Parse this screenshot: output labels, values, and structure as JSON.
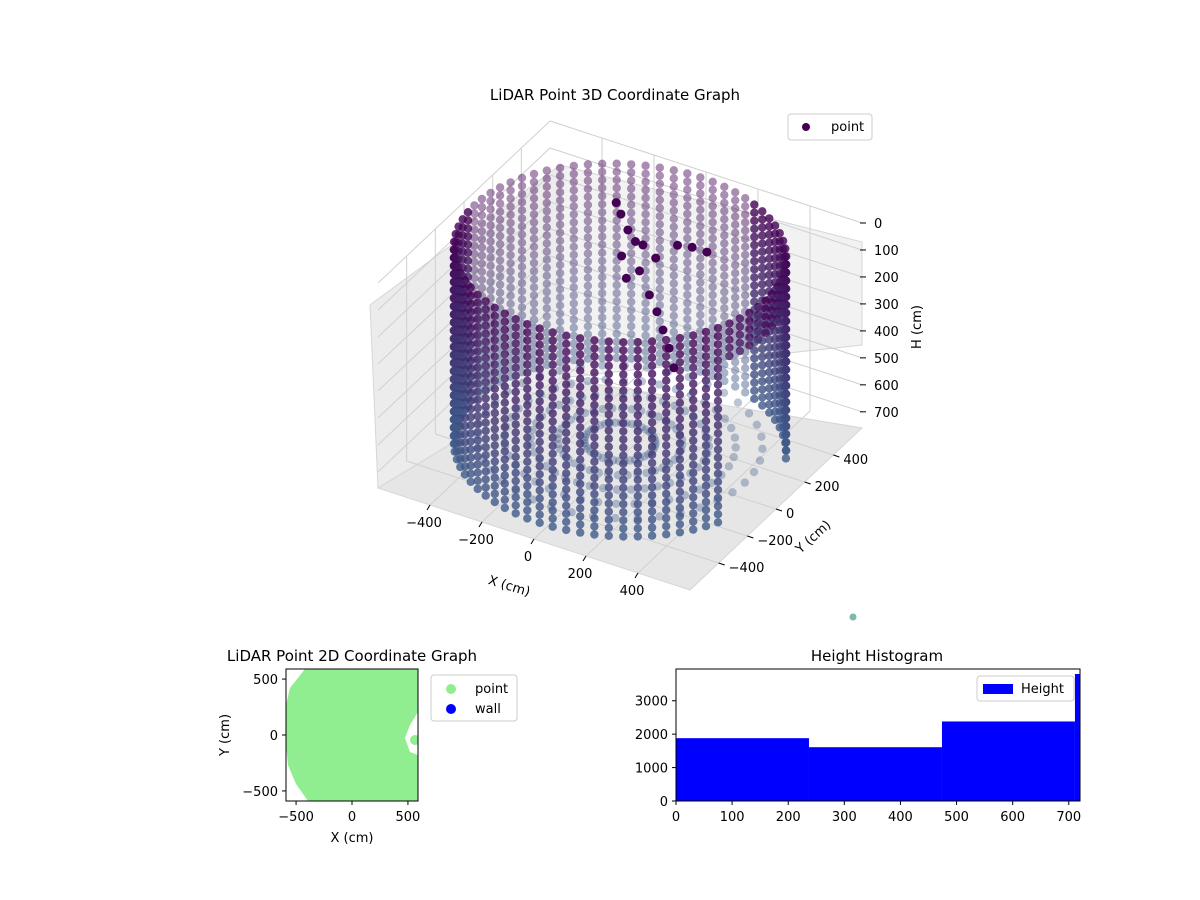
{
  "chart_data": [
    {
      "type": "scatter",
      "title": "LiDAR Point 3D Coordinate Graph",
      "xlabel": "X (cm)",
      "ylabel": "Y (cm)",
      "zlabel": "H (cm)",
      "xlim": [
        -600,
        600
      ],
      "ylim": [
        -600,
        600
      ],
      "zlim": [
        760,
        0
      ],
      "x_ticks": [
        "−400",
        "−200",
        "0",
        "200",
        "400"
      ],
      "y_ticks": [
        "−400",
        "−200",
        "0",
        "200",
        "400"
      ],
      "z_ticks": [
        "0",
        "100",
        "200",
        "300",
        "400",
        "500",
        "600",
        "700"
      ],
      "legend": {
        "entries": [
          "point"
        ],
        "placement": "top-right"
      },
      "series": [
        {
          "name": "point",
          "shape": "cylindrical wall of radius ~560 cm, heights 0–720 cm, colormap viridis by height"
        }
      ],
      "colors": {
        "top": "#440154",
        "bottom": "#3e5a8a",
        "legend_marker": "#440154",
        "outlier": "#7fb7ac"
      }
    },
    {
      "type": "scatter",
      "title": "LiDAR Point 2D Coordinate Graph",
      "xlabel": "X (cm)",
      "ylabel": "Y (cm)",
      "xlim": [
        -590,
        590
      ],
      "ylim": [
        -590,
        590
      ],
      "x_ticks": [
        "−500",
        "0",
        "500"
      ],
      "y_ticks": [
        "500",
        "0",
        "−500"
      ],
      "legend": {
        "entries": [
          "point",
          "wall"
        ],
        "placement": "outside-right"
      },
      "series": [
        {
          "name": "point",
          "color": "#90ee90"
        },
        {
          "name": "wall",
          "color": "#0000ff"
        }
      ]
    },
    {
      "type": "bar",
      "title": "Height Histogram",
      "xlim": [
        0,
        720
      ],
      "ylim": [
        0,
        3950
      ],
      "x_ticks": [
        "0",
        "100",
        "200",
        "300",
        "400",
        "500",
        "600",
        "700"
      ],
      "y_ticks": [
        "0",
        "1000",
        "2000",
        "3000"
      ],
      "legend": {
        "entries": [
          "Height"
        ],
        "placement": "top-right"
      },
      "bins": [
        {
          "start": 0,
          "end": 237,
          "count": 1880
        },
        {
          "start": 237,
          "end": 474,
          "count": 1610
        },
        {
          "start": 474,
          "end": 711,
          "count": 2380
        },
        {
          "start": 711,
          "end": 720,
          "count": 3800
        }
      ],
      "color": "#0000ff"
    }
  ]
}
